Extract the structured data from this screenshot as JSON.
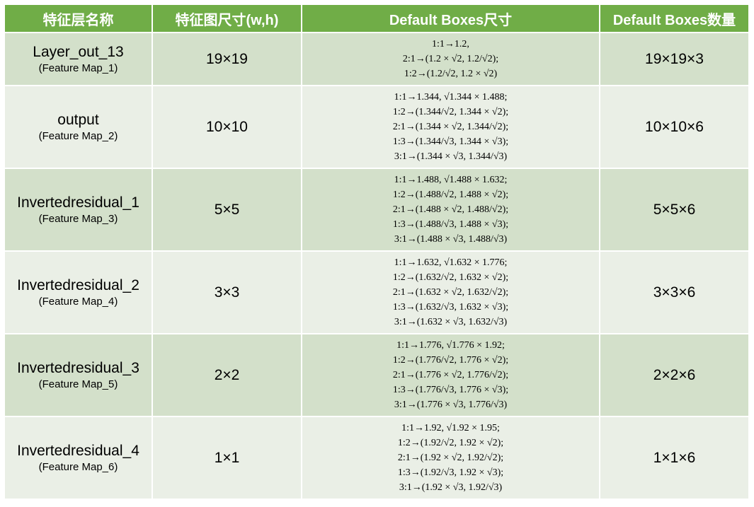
{
  "headers": [
    "特征层名称",
    "特征图尺寸(w,h)",
    "Default Boxes尺寸",
    "Default Boxes数量"
  ],
  "colors": {
    "header_bg": "#70ad47",
    "row_dark": "#d3e0ca",
    "row_light": "#eaefe6"
  },
  "rows": [
    {
      "name": "Layer_out_13",
      "sub": "(Feature Map_1)",
      "size": "19×19",
      "boxes": [
        "1:1→1.2,",
        "2:1→(1.2 × √2,  1.2/√2);",
        "1:2→(1.2/√2,  1.2 × √2)"
      ],
      "count": "19×19×3"
    },
    {
      "name": "output",
      "sub": "(Feature Map_2)",
      "size": "10×10",
      "boxes": [
        "1:1→1.344,  √1.344 × 1.488;",
        "1:2→(1.344/√2,  1.344 × √2);",
        "2:1→(1.344 × √2,  1.344/√2);",
        "1:3→(1.344/√3,  1.344 × √3);",
        "3:1→(1.344 × √3,  1.344/√3)"
      ],
      "count": "10×10×6"
    },
    {
      "name": "Invertedresidual_1",
      "sub": "(Feature Map_3)",
      "size": "5×5",
      "boxes": [
        "1:1→1.488,  √1.488 × 1.632;",
        "1:2→(1.488/√2,  1.488 × √2);",
        "2:1→(1.488 × √2,  1.488/√2);",
        "1:3→(1.488/√3,  1.488 × √3);",
        "3:1→(1.488 × √3,  1.488/√3)"
      ],
      "count": "5×5×6"
    },
    {
      "name": "Invertedresidual_2",
      "sub": "(Feature Map_4)",
      "size": "3×3",
      "boxes": [
        "1:1→1.632,  √1.632 × 1.776;",
        "1:2→(1.632/√2,  1.632 × √2);",
        "2:1→(1.632 × √2,  1.632/√2);",
        "1:3→(1.632/√3,  1.632 × √3);",
        "3:1→(1.632 × √3,  1.632/√3)"
      ],
      "count": "3×3×6"
    },
    {
      "name": "Invertedresidual_3",
      "sub": "(Feature Map_5)",
      "size": "2×2",
      "boxes": [
        "1:1→1.776,  √1.776 × 1.92;",
        "1:2→(1.776/√2,  1.776 × √2);",
        "2:1→(1.776 × √2,  1.776/√2);",
        "1:3→(1.776/√3,  1.776 × √3);",
        "3:1→(1.776 × √3,  1.776/√3)"
      ],
      "count": "2×2×6"
    },
    {
      "name": "Invertedresidual_4",
      "sub": "(Feature Map_6)",
      "size": "1×1",
      "boxes": [
        "1:1→1.92,  √1.92 × 1.95;",
        "1:2→(1.92/√2,  1.92 × √2);",
        "2:1→(1.92 × √2,  1.92/√2);",
        "1:3→(1.92/√3,  1.92 × √3);",
        "3:1→(1.92 × √3,  1.92/√3)"
      ],
      "count": "1×1×6"
    }
  ]
}
